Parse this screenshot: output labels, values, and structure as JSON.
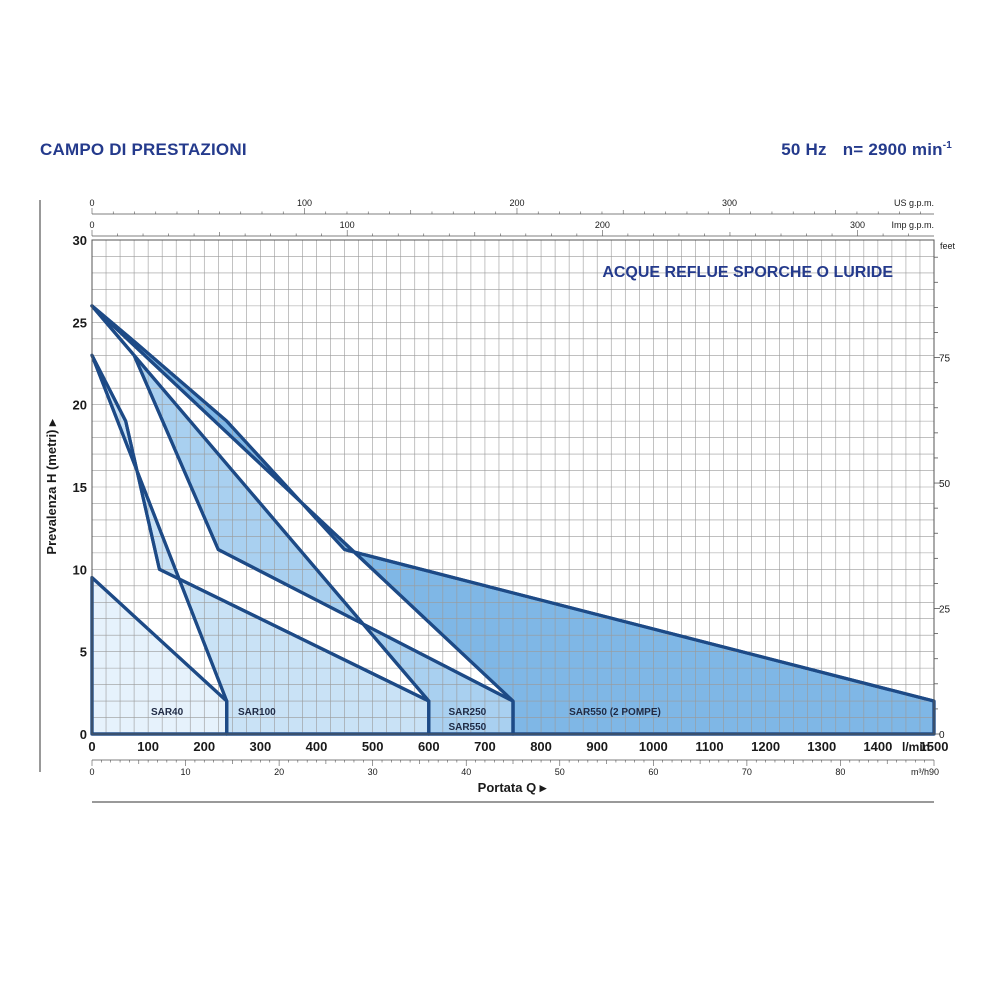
{
  "header": {
    "title": "CAMPO DI PRESTAZIONI",
    "frequency": "50 Hz",
    "speed": "n= 2900 min",
    "speed_exp": "-1"
  },
  "chart_data": {
    "type": "area",
    "title": "ACQUE REFLUE SPORCHE O LURIDE",
    "xlabel": "Portata Q",
    "ylabel": "Prevalenza H (metri)",
    "x_unit": "l/min",
    "xlim": [
      0,
      1500
    ],
    "ylim": [
      0,
      30
    ],
    "grid": true,
    "x_ticks": [
      0,
      100,
      200,
      300,
      400,
      500,
      600,
      700,
      800,
      900,
      1000,
      1100,
      1200,
      1300,
      1400,
      1500
    ],
    "y_ticks": [
      0,
      5,
      10,
      15,
      20,
      25,
      30
    ],
    "secondary_axes": {
      "m3h": {
        "unit": "m³/h",
        "ticks": [
          0,
          10,
          20,
          30,
          40,
          50,
          60,
          70,
          80,
          90
        ]
      },
      "us_gpm": {
        "unit": "US g.p.m.",
        "ticks": [
          0,
          100,
          200,
          300
        ]
      },
      "imp_gpm": {
        "unit": "Imp g.p.m.",
        "ticks": [
          0,
          100,
          200,
          300
        ]
      },
      "feet": {
        "unit": "feet",
        "ticks": [
          0,
          25,
          50,
          75
        ]
      }
    },
    "series": [
      {
        "name": "SAR550 (2 POMPE)",
        "color": "#7fb7e6",
        "points": [
          [
            0,
            26
          ],
          [
            80,
            23.7
          ],
          [
            240,
            19
          ],
          [
            450,
            11.2
          ],
          [
            1500,
            2
          ],
          [
            1500,
            0
          ],
          [
            750,
            0
          ],
          [
            750,
            2
          ]
        ]
      },
      {
        "name": "SAR250 SAR550",
        "color": "#a9d0f0",
        "points": [
          [
            0,
            26
          ],
          [
            75,
            23
          ],
          [
            225,
            11.2
          ],
          [
            750,
            2
          ],
          [
            750,
            0
          ],
          [
            600,
            0
          ],
          [
            600,
            2
          ]
        ]
      },
      {
        "name": "SAR100",
        "color": "#c9e2f6",
        "points": [
          [
            0,
            23
          ],
          [
            60,
            19
          ],
          [
            120,
            10
          ],
          [
            600,
            2
          ],
          [
            600,
            0
          ],
          [
            240,
            0
          ],
          [
            240,
            2
          ]
        ]
      },
      {
        "name": "SAR40",
        "color": "#e6f2fc",
        "points": [
          [
            0,
            9.5
          ],
          [
            240,
            2
          ],
          [
            240,
            0
          ],
          [
            0,
            0
          ]
        ]
      }
    ],
    "region_labels": [
      {
        "text": "SAR40",
        "x": 105,
        "y": 1.4
      },
      {
        "text": "SAR100",
        "x": 260,
        "y": 1.4
      },
      {
        "text": "SAR250",
        "x": 635,
        "y": 1.4
      },
      {
        "text": "SAR550",
        "x": 635,
        "y": 0.5
      },
      {
        "text": "SAR550 (2 POMPE)",
        "x": 850,
        "y": 1.4
      }
    ]
  }
}
